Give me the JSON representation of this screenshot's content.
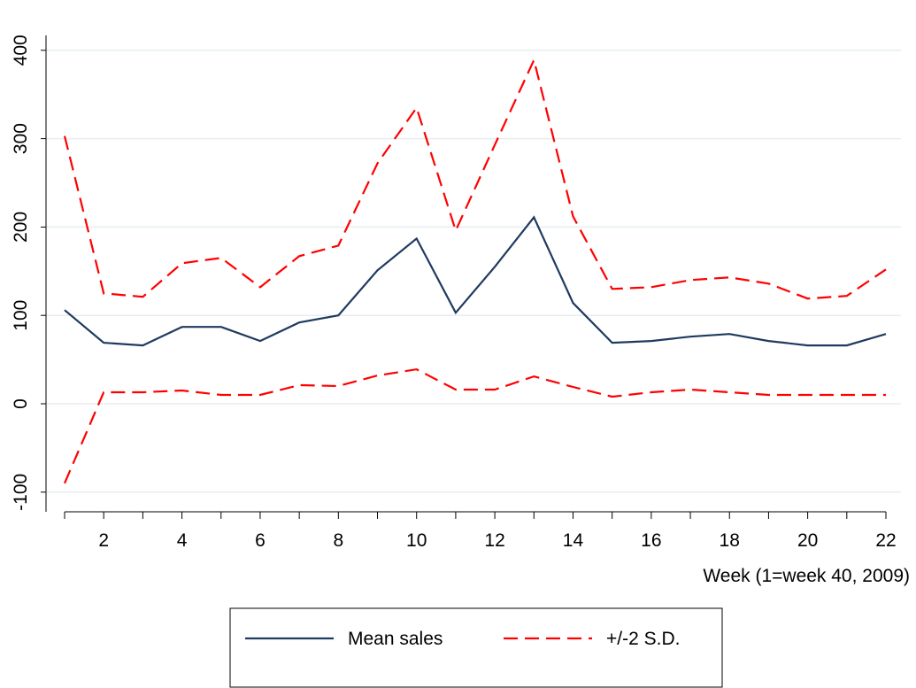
{
  "chart_data": {
    "type": "line",
    "title": "",
    "xlabel": "Week (1=week 40, 2009)",
    "ylabel": "",
    "x": [
      1,
      2,
      3,
      4,
      5,
      6,
      7,
      8,
      9,
      10,
      11,
      12,
      13,
      14,
      15,
      16,
      17,
      18,
      19,
      20,
      21,
      22
    ],
    "xticks": [
      2,
      4,
      6,
      8,
      10,
      12,
      14,
      16,
      18,
      20,
      22
    ],
    "xticks_minor": [
      1,
      3,
      5,
      7,
      9,
      11,
      13,
      15,
      17,
      19,
      21
    ],
    "xticks_labels": [
      "2",
      "4",
      "6",
      "8",
      "10",
      "12",
      "14",
      "16",
      "18",
      "20",
      "22"
    ],
    "yticks": [
      -100,
      0,
      100,
      200,
      300,
      400
    ],
    "yticks_labels": [
      "-100",
      "0",
      "100",
      "200",
      "300",
      "400"
    ],
    "xlim": [
      1,
      22
    ],
    "ylim": [
      -100,
      400
    ],
    "grid": true,
    "legend_position": "bottom",
    "series": [
      {
        "name": "Mean sales",
        "style": "solid",
        "color": "#1f3a5f",
        "values": [
          106,
          69,
          66,
          87,
          87,
          71,
          92,
          100,
          151,
          187,
          103,
          155,
          211,
          114,
          69,
          71,
          76,
          79,
          71,
          66,
          66,
          79
        ]
      },
      {
        "name": "+/-2 S.D.",
        "style": "dashed",
        "color": "#ff0000",
        "values": [
          303,
          125,
          121,
          159,
          165,
          132,
          167,
          179,
          272,
          335,
          196,
          293,
          389,
          212,
          130,
          132,
          140,
          143,
          136,
          119,
          122,
          152
        ]
      },
      {
        "name": "",
        "style": "dashed",
        "color": "#ff0000",
        "values": [
          -90,
          13,
          13,
          15,
          10,
          10,
          21,
          20,
          32,
          39,
          16,
          16,
          31,
          19,
          8,
          13,
          16,
          13,
          10,
          10,
          10,
          10
        ]
      }
    ],
    "legend": [
      {
        "label": "Mean sales",
        "style": "solid",
        "color": "#1f3a5f"
      },
      {
        "label": "+/-2 S.D.",
        "style": "dashed",
        "color": "#ff0000"
      }
    ]
  }
}
